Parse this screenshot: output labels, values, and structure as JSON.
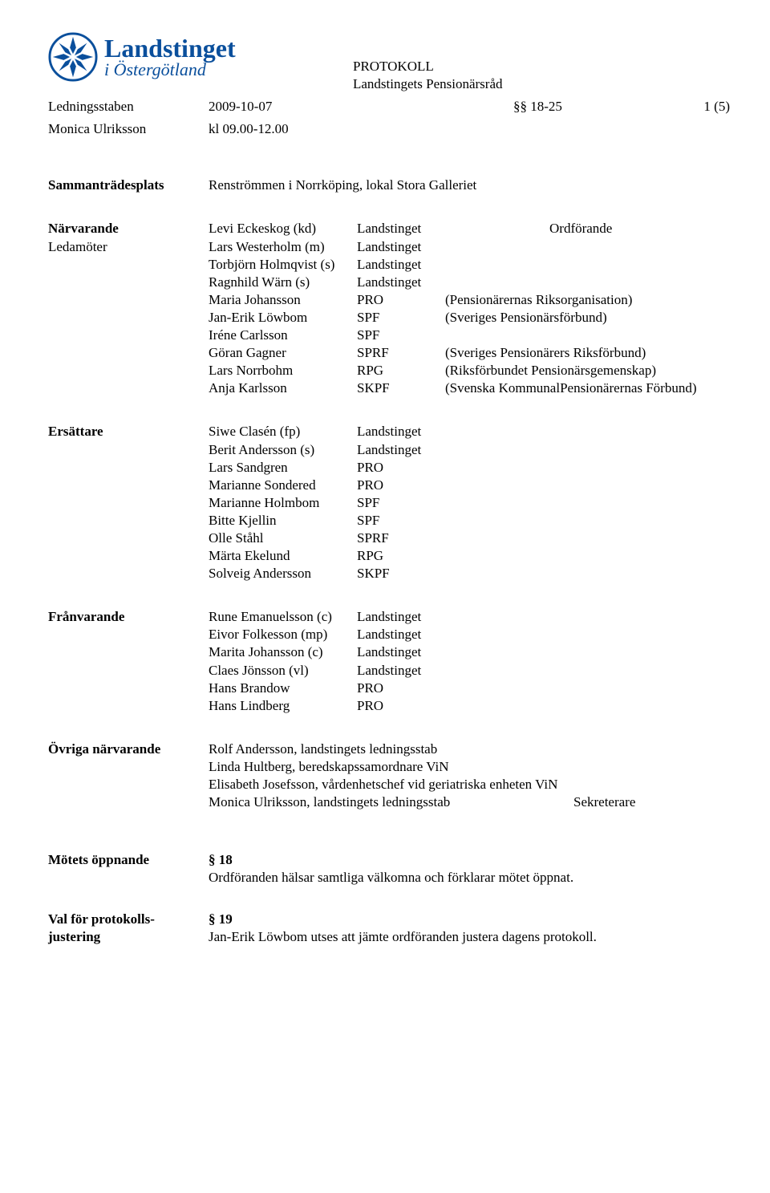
{
  "logo": {
    "line1": "Landstinget",
    "line2": "i Östergötland",
    "color": "#0a4f9c"
  },
  "header": {
    "line1": "PROTOKOLL",
    "line2": "Landstingets Pensionärsråd"
  },
  "meta": {
    "row1": {
      "c1": "Ledningsstaben",
      "c2": "2009-10-07",
      "c4": "§§ 18-25",
      "c5": "1 (5)"
    },
    "row2": {
      "c1": "Monica Ulriksson",
      "c2": "kl 09.00-12.00"
    }
  },
  "plats": {
    "label": "Sammanträdesplats",
    "text": "Renströmmen i Norrköping, lokal Stora Galleriet"
  },
  "narv": {
    "label": "Närvarande",
    "sub": "Ledamöter",
    "rows": [
      {
        "name": "Levi Eckeskog (kd)",
        "org": "Landstinget",
        "desc": "Ordförande"
      },
      {
        "name": "Lars Westerholm (m)",
        "org": "Landstinget",
        "desc": ""
      },
      {
        "name": "Torbjörn Holmqvist (s)",
        "org": "Landstinget",
        "desc": ""
      },
      {
        "name": "Ragnhild Wärn (s)",
        "org": "Landstinget",
        "desc": ""
      },
      {
        "name": "Maria Johansson",
        "org": "PRO",
        "desc": "(Pensionärernas Riksorganisation)"
      },
      {
        "name": "Jan-Erik Löwbom",
        "org": "SPF",
        "desc": "(Sveriges Pensionärsförbund)"
      },
      {
        "name": "Iréne Carlsson",
        "org": "SPF",
        "desc": ""
      },
      {
        "name": "Göran Gagner",
        "org": "SPRF",
        "desc": "(Sveriges Pensionärers Riksförbund)"
      },
      {
        "name": "Lars Norrbohm",
        "org": "RPG",
        "desc": "(Riksförbundet Pensionärsgemenskap)"
      },
      {
        "name": "Anja Karlsson",
        "org": "SKPF",
        "desc": "(Svenska KommunalPensionärernas Förbund)"
      }
    ]
  },
  "ers": {
    "label": "Ersättare",
    "rows": [
      {
        "name": "Siwe Clasén (fp)",
        "org": "Landstinget"
      },
      {
        "name": "Berit Andersson (s)",
        "org": "Landstinget"
      },
      {
        "name": "Lars Sandgren",
        "org": "PRO"
      },
      {
        "name": "Marianne Sondered",
        "org": "PRO"
      },
      {
        "name": "Marianne Holmbom",
        "org": "SPF"
      },
      {
        "name": "Bitte Kjellin",
        "org": "SPF"
      },
      {
        "name": "Olle Ståhl",
        "org": "SPRF"
      },
      {
        "name": "Märta Ekelund",
        "org": "RPG"
      },
      {
        "name": "Solveig Andersson",
        "org": "SKPF"
      }
    ]
  },
  "fran": {
    "label": "Frånvarande",
    "rows": [
      {
        "name": "Rune Emanuelsson (c)",
        "org": "Landstinget"
      },
      {
        "name": "Eivor Folkesson (mp)",
        "org": "Landstinget"
      },
      {
        "name": "Marita Johansson (c)",
        "org": "Landstinget"
      },
      {
        "name": "Claes Jönsson (vl)",
        "org": "Landstinget"
      },
      {
        "name": "Hans Brandow",
        "org": "PRO"
      },
      {
        "name": "Hans Lindberg",
        "org": "PRO"
      }
    ]
  },
  "ovr": {
    "label": "Övriga närvarande",
    "rows": [
      "Rolf Andersson, landstingets ledningsstab",
      "Linda Hultberg, beredskapssamordnare ViN",
      "Elisabeth Josefsson, vårdenhetschef vid geriatriska enheten ViN"
    ],
    "last": {
      "name": "Monica Ulriksson, landstingets ledningsstab",
      "role": "Sekreterare"
    }
  },
  "p18": {
    "section": "§ 18",
    "label": "Mötets öppnande",
    "text": "Ordföranden hälsar samtliga välkomna och förklarar mötet öppnat."
  },
  "p19": {
    "section": "§ 19",
    "label1": "Val för protokolls-",
    "label2": "justering",
    "text": "Jan-Erik Löwbom utses att jämte ordföranden justera dagens protokoll."
  }
}
